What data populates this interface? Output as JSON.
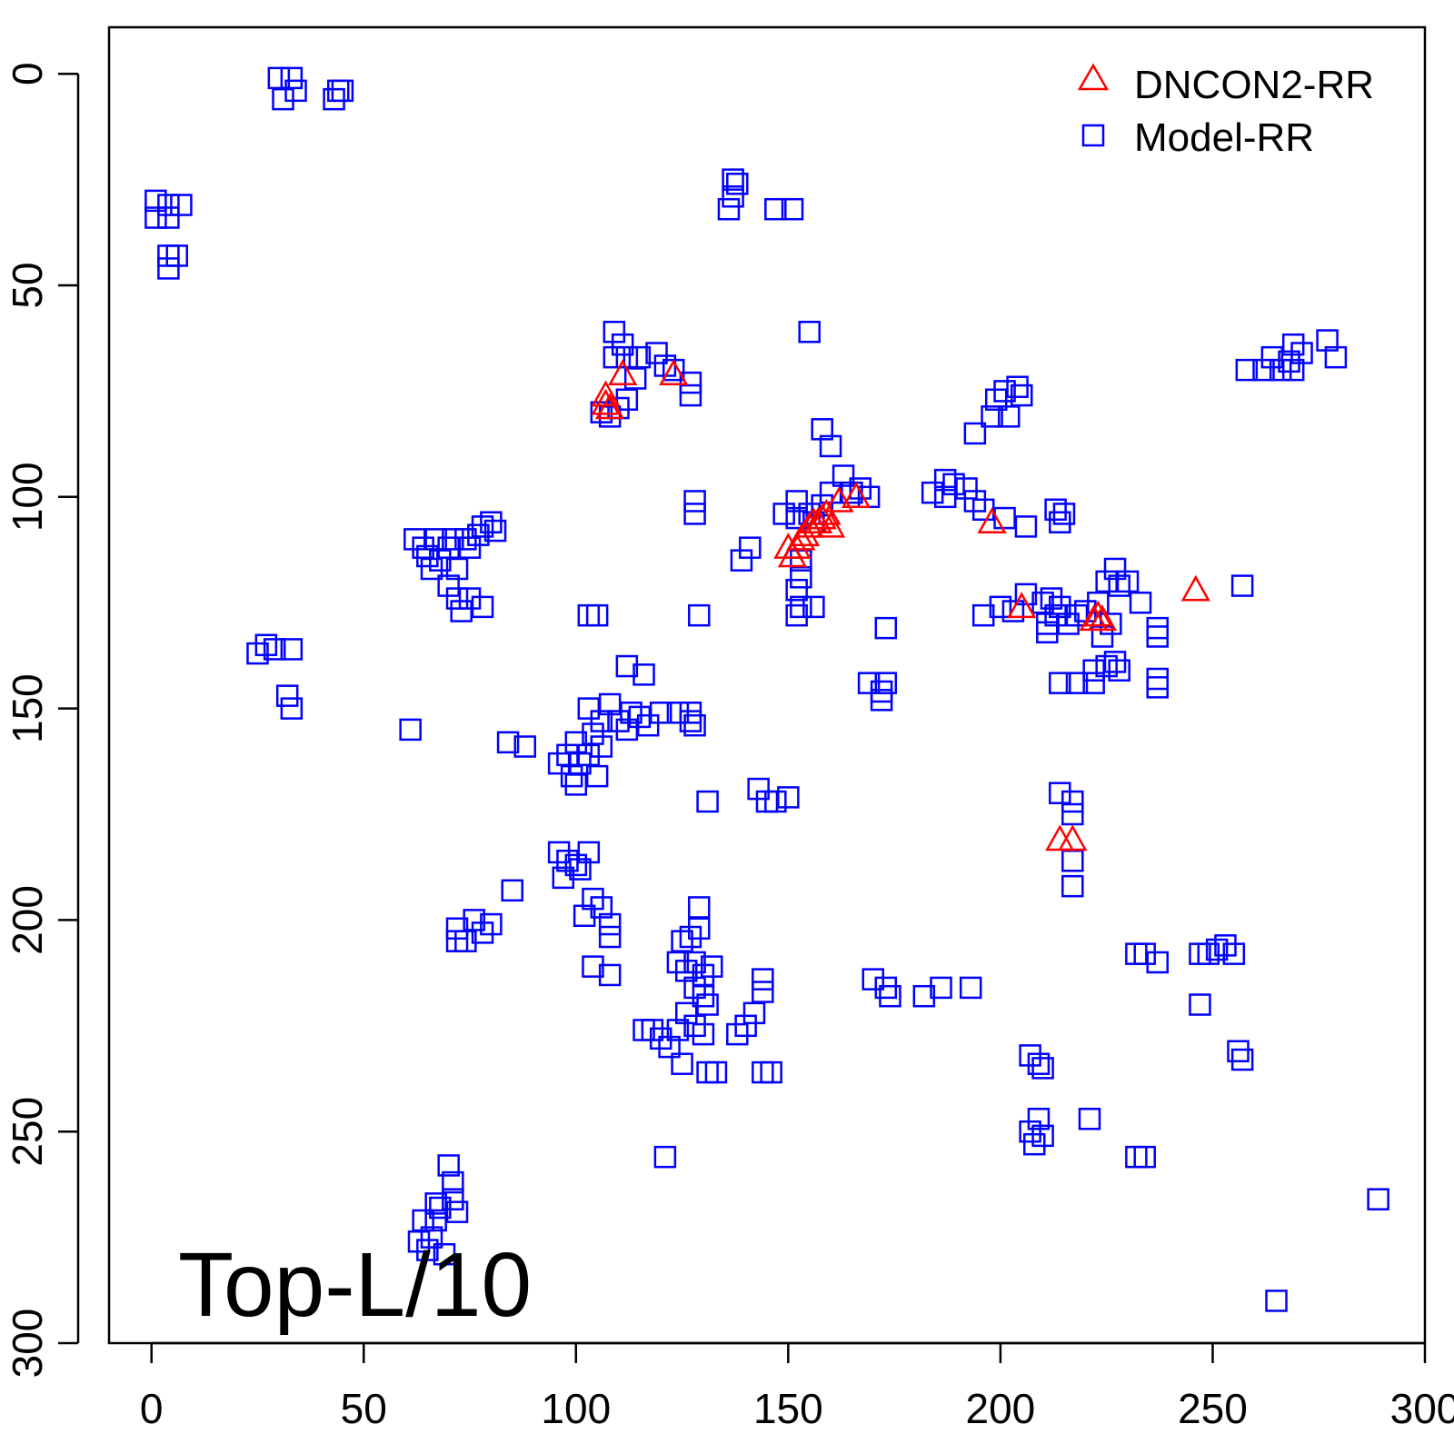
{
  "chart_data": {
    "type": "scatter",
    "title": "",
    "annotation": "Top-L/10",
    "xlabel": "",
    "ylabel": "",
    "xlim": [
      -10,
      300
    ],
    "ylim": [
      300,
      -11
    ],
    "y_reversed": true,
    "grid": false,
    "legend_position": "top-right",
    "xticks": [
      0,
      50,
      100,
      150,
      200,
      250,
      300
    ],
    "yticks": [
      0,
      50,
      100,
      150,
      200,
      250,
      300
    ],
    "tick_labels_x": [
      "0",
      "50",
      "100",
      "150",
      "200",
      "250",
      "300"
    ],
    "tick_labels_y": [
      "0",
      "50",
      "100",
      "150",
      "200",
      "250",
      "300"
    ],
    "series": [
      {
        "name": "DNCON2-RR",
        "marker": "triangle-open",
        "color": "#ff0000",
        "points": [
          [
            107,
            76
          ],
          [
            108,
            79
          ],
          [
            107,
            78
          ],
          [
            111,
            71
          ],
          [
            123,
            71
          ],
          [
            150,
            112
          ],
          [
            151,
            114
          ],
          [
            152,
            112
          ],
          [
            153,
            110
          ],
          [
            154,
            109
          ],
          [
            155,
            107
          ],
          [
            156,
            106
          ],
          [
            157,
            106
          ],
          [
            158,
            105
          ],
          [
            159,
            104
          ],
          [
            160,
            107
          ],
          [
            162,
            101
          ],
          [
            166,
            100
          ],
          [
            198,
            106
          ],
          [
            205,
            126
          ],
          [
            222,
            129
          ],
          [
            223,
            128
          ],
          [
            224,
            129
          ],
          [
            246,
            122
          ],
          [
            214,
            181
          ],
          [
            217,
            181
          ]
        ]
      },
      {
        "name": "Model-RR",
        "marker": "square-open",
        "color": "#0000ff",
        "points": [
          [
            30,
            1
          ],
          [
            33,
            1
          ],
          [
            34,
            4
          ],
          [
            31,
            6
          ],
          [
            43,
            6
          ],
          [
            45,
            4
          ],
          [
            44,
            4
          ],
          [
            1,
            30
          ],
          [
            1,
            34
          ],
          [
            4,
            31
          ],
          [
            4,
            34
          ],
          [
            7,
            31
          ],
          [
            4,
            43
          ],
          [
            6,
            43
          ],
          [
            4,
            46
          ],
          [
            137,
            25
          ],
          [
            138,
            26
          ],
          [
            137,
            29
          ],
          [
            136,
            32
          ],
          [
            147,
            32
          ],
          [
            151,
            32
          ],
          [
            109,
            61
          ],
          [
            111,
            64
          ],
          [
            109,
            67
          ],
          [
            112,
            67
          ],
          [
            115,
            67
          ],
          [
            119,
            66
          ],
          [
            121,
            69
          ],
          [
            123,
            70
          ],
          [
            127,
            73
          ],
          [
            127,
            76
          ],
          [
            108,
            81
          ],
          [
            106,
            80
          ],
          [
            110,
            79
          ],
          [
            112,
            77
          ],
          [
            114,
            72
          ],
          [
            155,
            61
          ],
          [
            269,
            64
          ],
          [
            271,
            66
          ],
          [
            277,
            63
          ],
          [
            279,
            67
          ],
          [
            266,
            70
          ],
          [
            269,
            70
          ],
          [
            258,
            70
          ],
          [
            262,
            70
          ],
          [
            264,
            67
          ],
          [
            268,
            68
          ],
          [
            201,
            75
          ],
          [
            204,
            74
          ],
          [
            199,
            77
          ],
          [
            205,
            76
          ],
          [
            198,
            81
          ],
          [
            202,
            81
          ],
          [
            194,
            85
          ],
          [
            158,
            84
          ],
          [
            160,
            88
          ],
          [
            187,
            96
          ],
          [
            189,
            97
          ],
          [
            184,
            99
          ],
          [
            187,
            100
          ],
          [
            192,
            98
          ],
          [
            194,
            101
          ],
          [
            196,
            103
          ],
          [
            201,
            105
          ],
          [
            206,
            107
          ],
          [
            213,
            103
          ],
          [
            215,
            104
          ],
          [
            214,
            106
          ],
          [
            163,
            95
          ],
          [
            165,
            99
          ],
          [
            167,
            98
          ],
          [
            169,
            100
          ],
          [
            160,
            99
          ],
          [
            158,
            102
          ],
          [
            155,
            104
          ],
          [
            152,
            101
          ],
          [
            152,
            105
          ],
          [
            149,
            104
          ],
          [
            156,
            106
          ],
          [
            128,
            101
          ],
          [
            128,
            104
          ],
          [
            153,
            115
          ],
          [
            153,
            119
          ],
          [
            152,
            122
          ],
          [
            153,
            126
          ],
          [
            156,
            126
          ],
          [
            152,
            128
          ],
          [
            141,
            112
          ],
          [
            139,
            115
          ],
          [
            129,
            128
          ],
          [
            103,
            128
          ],
          [
            105,
            128
          ],
          [
            173,
            131
          ],
          [
            62,
            110
          ],
          [
            64,
            112
          ],
          [
            65,
            114
          ],
          [
            66,
            117
          ],
          [
            67,
            110
          ],
          [
            70,
            112
          ],
          [
            68,
            115
          ],
          [
            71,
            110
          ],
          [
            74,
            110
          ],
          [
            77,
            109
          ],
          [
            78,
            107
          ],
          [
            80,
            106
          ],
          [
            81,
            108
          ],
          [
            75,
            112
          ],
          [
            72,
            117
          ],
          [
            70,
            121
          ],
          [
            72,
            124
          ],
          [
            73,
            127
          ],
          [
            75,
            124
          ],
          [
            78,
            126
          ],
          [
            25,
            137
          ],
          [
            27,
            135
          ],
          [
            29,
            136
          ],
          [
            33,
            136
          ],
          [
            32,
            147
          ],
          [
            33,
            150
          ],
          [
            61,
            155
          ],
          [
            196,
            128
          ],
          [
            200,
            126
          ],
          [
            203,
            127
          ],
          [
            206,
            123
          ],
          [
            210,
            125
          ],
          [
            212,
            124
          ],
          [
            214,
            126
          ],
          [
            213,
            128
          ],
          [
            216,
            130
          ],
          [
            218,
            128
          ],
          [
            220,
            127
          ],
          [
            223,
            125
          ],
          [
            225,
            120
          ],
          [
            227,
            117
          ],
          [
            228,
            121
          ],
          [
            230,
            120
          ],
          [
            233,
            125
          ],
          [
            237,
            131
          ],
          [
            237,
            133
          ],
          [
            226,
            130
          ],
          [
            224,
            133
          ],
          [
            227,
            139
          ],
          [
            228,
            141
          ],
          [
            225,
            140
          ],
          [
            222,
            141
          ],
          [
            214,
            144
          ],
          [
            218,
            144
          ],
          [
            222,
            144
          ],
          [
            237,
            143
          ],
          [
            237,
            145
          ],
          [
            257,
            121
          ],
          [
            211,
            130
          ],
          [
            211,
            132
          ],
          [
            169,
            144
          ],
          [
            172,
            146
          ],
          [
            173,
            144
          ],
          [
            172,
            148
          ],
          [
            112,
            140
          ],
          [
            116,
            142
          ],
          [
            113,
            151
          ],
          [
            110,
            153
          ],
          [
            112,
            155
          ],
          [
            115,
            152
          ],
          [
            117,
            154
          ],
          [
            120,
            151
          ],
          [
            124,
            151
          ],
          [
            127,
            153
          ],
          [
            127,
            151
          ],
          [
            128,
            154
          ],
          [
            108,
            149
          ],
          [
            106,
            153
          ],
          [
            104,
            156
          ],
          [
            106,
            159
          ],
          [
            103,
            161
          ],
          [
            100,
            158
          ],
          [
            101,
            163
          ],
          [
            100,
            168
          ],
          [
            99,
            166
          ],
          [
            96,
            163
          ],
          [
            98,
            161
          ],
          [
            105,
            166
          ],
          [
            103,
            150
          ],
          [
            84,
            158
          ],
          [
            88,
            159
          ],
          [
            131,
            172
          ],
          [
            143,
            169
          ],
          [
            145,
            172
          ],
          [
            147,
            172
          ],
          [
            150,
            171
          ],
          [
            214,
            170
          ],
          [
            217,
            172
          ],
          [
            217,
            175
          ],
          [
            217,
            186
          ],
          [
            217,
            192
          ],
          [
            96,
            184
          ],
          [
            98,
            186
          ],
          [
            97,
            190
          ],
          [
            100,
            187
          ],
          [
            103,
            184
          ],
          [
            101,
            188
          ],
          [
            104,
            195
          ],
          [
            102,
            199
          ],
          [
            106,
            197
          ],
          [
            108,
            201
          ],
          [
            108,
            204
          ],
          [
            104,
            211
          ],
          [
            108,
            213
          ],
          [
            85,
            193
          ],
          [
            72,
            202
          ],
          [
            74,
            205
          ],
          [
            76,
            200
          ],
          [
            78,
            203
          ],
          [
            80,
            201
          ],
          [
            72,
            205
          ],
          [
            125,
            205
          ],
          [
            127,
            204
          ],
          [
            129,
            202
          ],
          [
            129,
            197
          ],
          [
            124,
            210
          ],
          [
            126,
            212
          ],
          [
            128,
            210
          ],
          [
            130,
            213
          ],
          [
            132,
            211
          ],
          [
            128,
            216
          ],
          [
            130,
            218
          ],
          [
            131,
            220
          ],
          [
            126,
            222
          ],
          [
            128,
            225
          ],
          [
            130,
            227
          ],
          [
            124,
            226
          ],
          [
            120,
            228
          ],
          [
            118,
            226
          ],
          [
            122,
            230
          ],
          [
            125,
            234
          ],
          [
            131,
            236
          ],
          [
            133,
            236
          ],
          [
            116,
            226
          ],
          [
            138,
            227
          ],
          [
            140,
            225
          ],
          [
            142,
            222
          ],
          [
            144,
            214
          ],
          [
            144,
            217
          ],
          [
            144,
            236
          ],
          [
            146,
            236
          ],
          [
            170,
            214
          ],
          [
            173,
            216
          ],
          [
            174,
            218
          ],
          [
            182,
            218
          ],
          [
            186,
            216
          ],
          [
            193,
            216
          ],
          [
            207,
            232
          ],
          [
            209,
            234
          ],
          [
            210,
            235
          ],
          [
            232,
            208
          ],
          [
            234,
            208
          ],
          [
            237,
            210
          ],
          [
            247,
            208
          ],
          [
            249,
            208
          ],
          [
            251,
            207
          ],
          [
            253,
            206
          ],
          [
            255,
            208
          ],
          [
            247,
            220
          ],
          [
            256,
            231
          ],
          [
            257,
            233
          ],
          [
            221,
            247
          ],
          [
            209,
            247
          ],
          [
            207,
            250
          ],
          [
            208,
            253
          ],
          [
            210,
            251
          ],
          [
            232,
            256
          ],
          [
            234,
            256
          ],
          [
            121,
            256
          ],
          [
            289,
            266
          ],
          [
            265,
            290
          ],
          [
            70,
            258
          ],
          [
            71,
            262
          ],
          [
            71,
            266
          ],
          [
            72,
            269
          ],
          [
            68,
            268
          ],
          [
            67,
            271
          ],
          [
            66,
            275
          ],
          [
            64,
            271
          ],
          [
            63,
            276
          ],
          [
            65,
            278
          ],
          [
            69,
            279
          ],
          [
            67,
            267
          ]
        ]
      }
    ]
  }
}
